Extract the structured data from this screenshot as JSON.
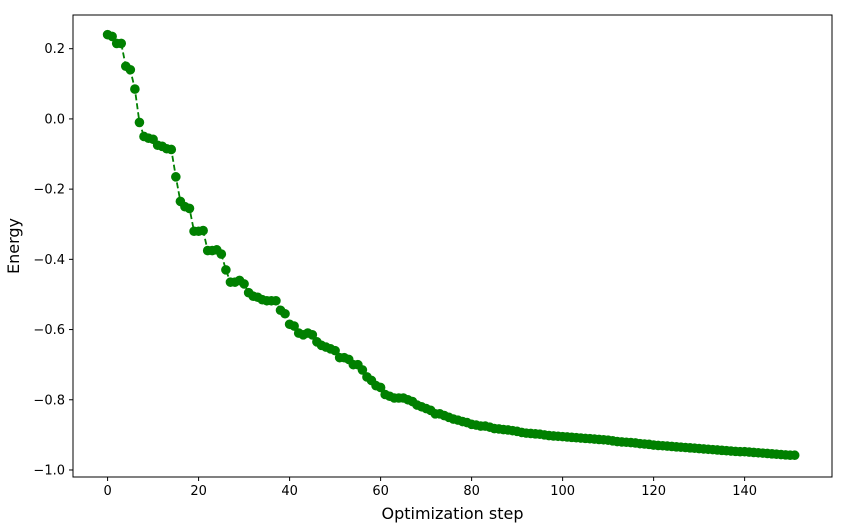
{
  "chart_data": {
    "type": "line",
    "title": "",
    "xlabel": "Optimization step",
    "ylabel": "Energy",
    "xlim": [
      -7.6,
      159.2
    ],
    "ylim": [
      -1.02,
      0.296
    ],
    "xticks": [
      0,
      20,
      40,
      60,
      80,
      100,
      120,
      140
    ],
    "xtick_labels": [
      "0",
      "20",
      "40",
      "60",
      "80",
      "100",
      "120",
      "140"
    ],
    "yticks": [
      0.2,
      0.0,
      -0.2,
      -0.4,
      -0.6,
      -0.8,
      -1.0
    ],
    "ytick_labels": [
      "0.2",
      "0.0",
      "−0.2",
      "−0.4",
      "−0.6",
      "−0.8",
      "−1.0"
    ],
    "grid": false,
    "line_style": "dashed",
    "marker": "circle",
    "color": "#008000",
    "x": [
      0,
      1,
      2,
      3,
      4,
      5,
      6,
      7,
      8,
      9,
      10,
      11,
      12,
      13,
      14,
      15,
      16,
      17,
      18,
      19,
      20,
      21,
      22,
      23,
      24,
      25,
      26,
      27,
      28,
      29,
      30,
      31,
      32,
      33,
      34,
      35,
      36,
      37,
      38,
      39,
      40,
      41,
      42,
      43,
      44,
      45,
      46,
      47,
      48,
      49,
      50,
      51,
      52,
      53,
      54,
      55,
      56,
      57,
      58,
      59,
      60,
      61,
      62,
      63,
      64,
      65,
      66,
      67,
      68,
      69,
      70,
      71,
      72,
      73,
      74,
      75,
      76,
      77,
      78,
      79,
      80,
      81,
      82,
      83,
      84,
      85,
      86,
      87,
      88,
      89,
      90,
      91,
      92,
      93,
      94,
      95,
      96,
      97,
      98,
      99,
      100,
      101,
      102,
      103,
      104,
      105,
      106,
      107,
      108,
      109,
      110,
      111,
      112,
      113,
      114,
      115,
      116,
      117,
      118,
      119,
      120,
      121,
      122,
      123,
      124,
      125,
      126,
      127,
      128,
      129,
      130,
      131,
      132,
      133,
      134,
      135,
      136,
      137,
      138,
      139,
      140,
      141,
      142,
      143,
      144,
      145,
      146,
      147,
      148,
      149,
      150,
      151
    ],
    "y": [
      0.24,
      0.235,
      0.215,
      0.215,
      0.15,
      0.14,
      0.085,
      -0.01,
      -0.05,
      -0.055,
      -0.058,
      -0.075,
      -0.078,
      -0.085,
      -0.087,
      -0.165,
      -0.235,
      -0.25,
      -0.255,
      -0.32,
      -0.32,
      -0.318,
      -0.375,
      -0.375,
      -0.373,
      -0.385,
      -0.43,
      -0.465,
      -0.465,
      -0.46,
      -0.47,
      -0.495,
      -0.505,
      -0.508,
      -0.515,
      -0.518,
      -0.518,
      -0.518,
      -0.545,
      -0.555,
      -0.585,
      -0.59,
      -0.61,
      -0.615,
      -0.61,
      -0.615,
      -0.635,
      -0.645,
      -0.65,
      -0.655,
      -0.66,
      -0.68,
      -0.68,
      -0.685,
      -0.7,
      -0.7,
      -0.715,
      -0.735,
      -0.745,
      -0.76,
      -0.765,
      -0.785,
      -0.79,
      -0.795,
      -0.795,
      -0.795,
      -0.8,
      -0.805,
      -0.815,
      -0.82,
      -0.825,
      -0.83,
      -0.84,
      -0.84,
      -0.845,
      -0.85,
      -0.855,
      -0.858,
      -0.862,
      -0.865,
      -0.87,
      -0.872,
      -0.875,
      -0.875,
      -0.878,
      -0.882,
      -0.883,
      -0.885,
      -0.886,
      -0.888,
      -0.89,
      -0.893,
      -0.895,
      -0.896,
      -0.897,
      -0.898,
      -0.9,
      -0.902,
      -0.903,
      -0.904,
      -0.905,
      -0.906,
      -0.907,
      -0.908,
      -0.909,
      -0.91,
      -0.911,
      -0.912,
      -0.913,
      -0.914,
      -0.915,
      -0.917,
      -0.919,
      -0.92,
      -0.921,
      -0.922,
      -0.923,
      -0.925,
      -0.926,
      -0.927,
      -0.929,
      -0.93,
      -0.931,
      -0.932,
      -0.933,
      -0.934,
      -0.935,
      -0.936,
      -0.937,
      -0.938,
      -0.939,
      -0.94,
      -0.941,
      -0.942,
      -0.943,
      -0.944,
      -0.945,
      -0.946,
      -0.947,
      -0.948,
      -0.948,
      -0.949,
      -0.95,
      -0.951,
      -0.952,
      -0.953,
      -0.954,
      -0.955,
      -0.956,
      -0.957,
      -0.958,
      -0.958
    ]
  }
}
